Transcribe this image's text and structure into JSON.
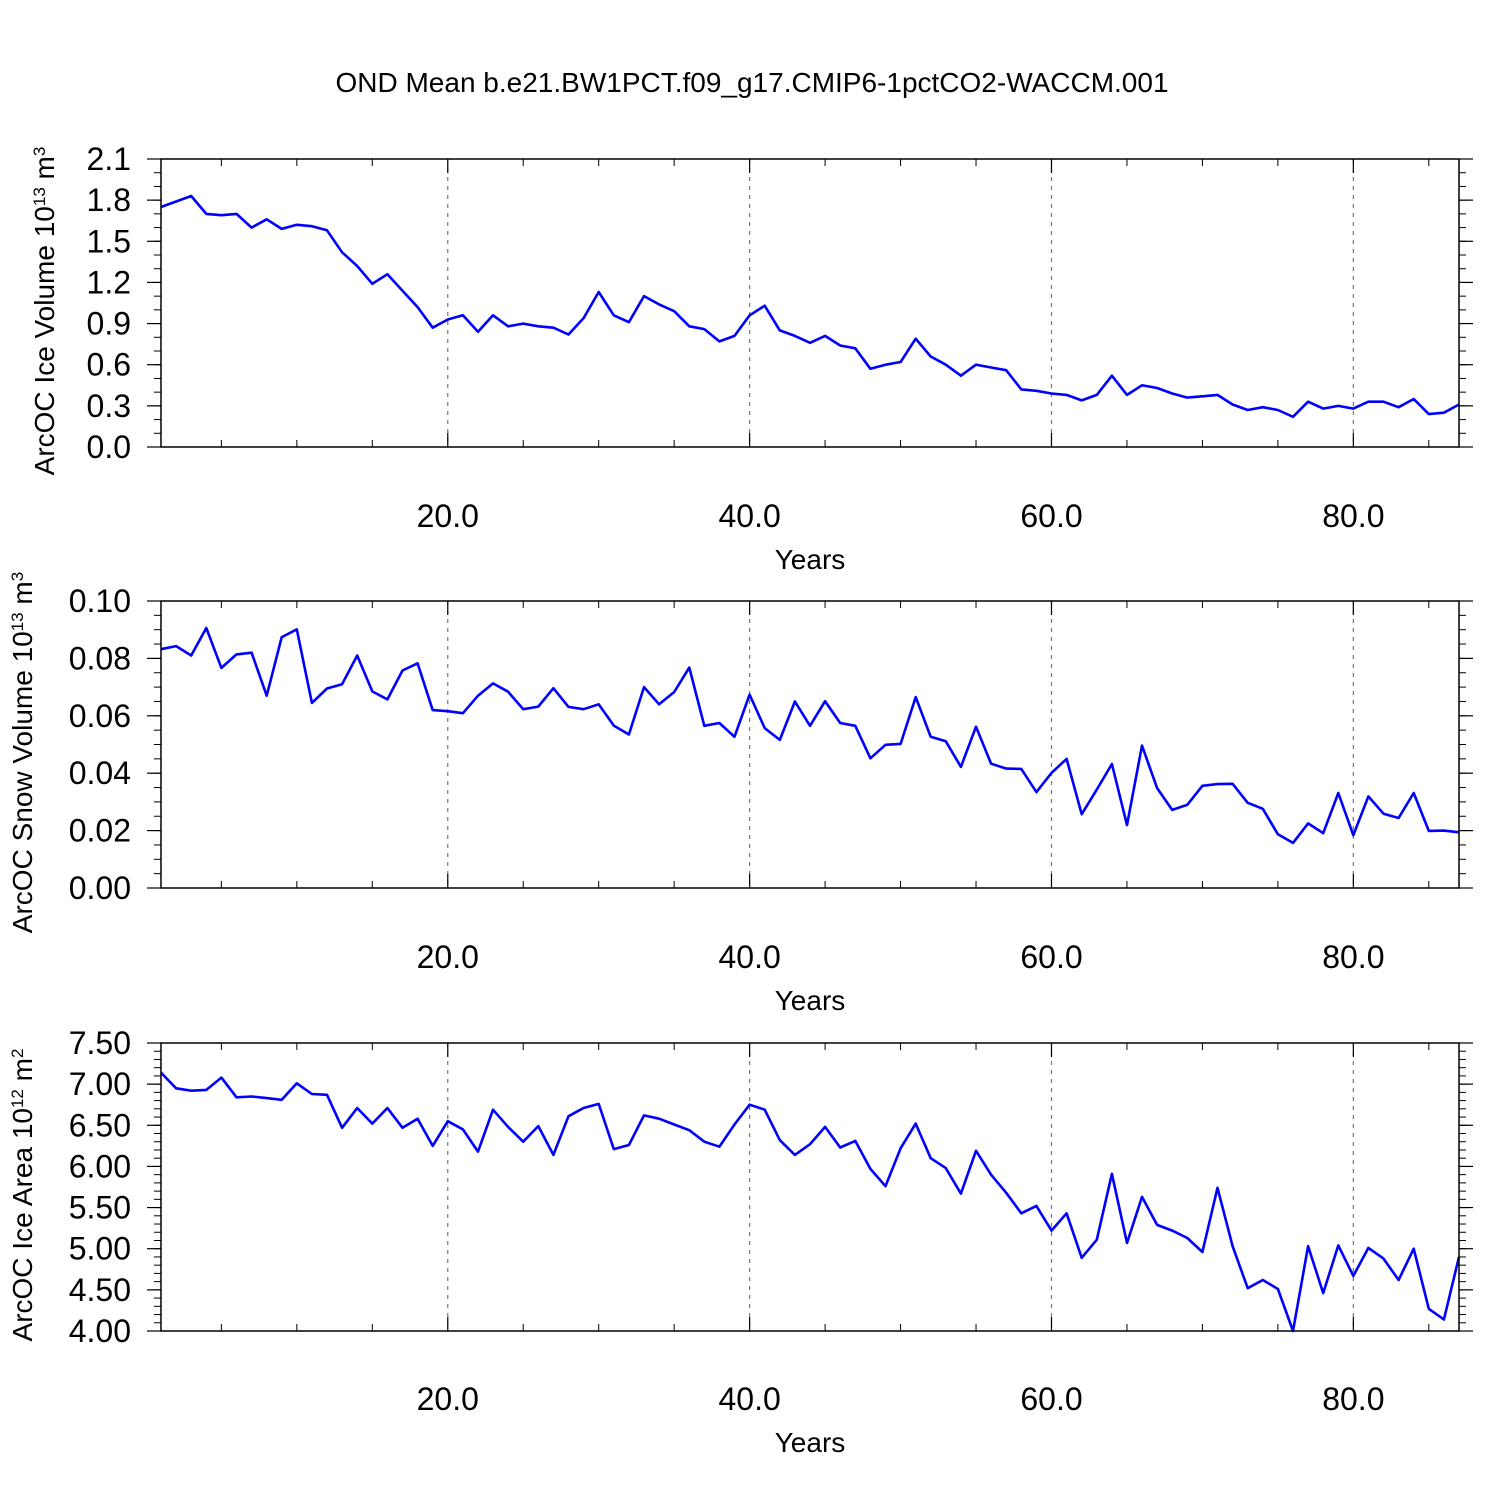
{
  "title": "OND Mean b.e21.BW1PCT.f09_g17.CMIP6-1pctCO2-WACCM.001",
  "line_color": "#0000ff",
  "chart_data": [
    {
      "type": "line",
      "ylabel_main": "ArcOC Ice Volume 10",
      "ylabel_exp": "13",
      "ylabel_unit": " m",
      "ylabel_unit_exp": "3",
      "xlabel": "Years",
      "xlim": [
        1,
        87
      ],
      "ylim": [
        0.0,
        2.1
      ],
      "xticks": [
        20,
        40,
        60,
        80
      ],
      "xtick_labels": [
        "20.0",
        "40.0",
        "60.0",
        "80.0"
      ],
      "yticks": [
        0.0,
        0.3,
        0.6,
        0.9,
        1.2,
        1.5,
        1.8,
        2.1
      ],
      "ytick_labels": [
        "0.0",
        "0.3",
        "0.6",
        "0.9",
        "1.2",
        "1.5",
        "1.8",
        "2.1"
      ],
      "y_minor_step": 0.1,
      "grid_x": "dashed",
      "series": [
        {
          "x_start": 1,
          "values": [
            1.75,
            1.79,
            1.83,
            1.7,
            1.69,
            1.7,
            1.6,
            1.66,
            1.59,
            1.62,
            1.61,
            1.58,
            1.42,
            1.32,
            1.19,
            1.26,
            1.14,
            1.02,
            0.87,
            0.93,
            0.96,
            0.84,
            0.96,
            0.88,
            0.9,
            0.88,
            0.87,
            0.82,
            0.94,
            1.13,
            0.96,
            0.91,
            1.1,
            1.04,
            0.99,
            0.88,
            0.86,
            0.77,
            0.81,
            0.96,
            1.03,
            0.85,
            0.81,
            0.76,
            0.81,
            0.74,
            0.72,
            0.57,
            0.6,
            0.62,
            0.79,
            0.66,
            0.6,
            0.52,
            0.6,
            0.58,
            0.56,
            0.42,
            0.41,
            0.39,
            0.38,
            0.34,
            0.38,
            0.52,
            0.38,
            0.45,
            0.43,
            0.39,
            0.36,
            0.37,
            0.38,
            0.31,
            0.27,
            0.29,
            0.27,
            0.22,
            0.33,
            0.28,
            0.3,
            0.28,
            0.33,
            0.33,
            0.29,
            0.35,
            0.24,
            0.25,
            0.31
          ]
        }
      ]
    },
    {
      "type": "line",
      "ylabel_main": "ArcOC Snow Volume 10",
      "ylabel_exp": "13",
      "ylabel_unit": " m",
      "ylabel_unit_exp": "3",
      "xlabel": "Years",
      "xlim": [
        1,
        87
      ],
      "ylim": [
        0.0,
        0.1
      ],
      "xticks": [
        20,
        40,
        60,
        80
      ],
      "xtick_labels": [
        "20.0",
        "40.0",
        "60.0",
        "80.0"
      ],
      "yticks": [
        0.0,
        0.02,
        0.04,
        0.06,
        0.08,
        0.1
      ],
      "ytick_labels": [
        "0.00",
        "0.02",
        "0.04",
        "0.06",
        "0.08",
        "0.10"
      ],
      "y_minor_step": 0.005,
      "grid_x": "dashed",
      "series": [
        {
          "x_start": 1,
          "values": [
            0.0832,
            0.0843,
            0.081,
            0.0906,
            0.0767,
            0.0814,
            0.082,
            0.067,
            0.0874,
            0.0901,
            0.0645,
            0.0695,
            0.071,
            0.081,
            0.0685,
            0.0657,
            0.0758,
            0.0783,
            0.062,
            0.0616,
            0.0609,
            0.067,
            0.0713,
            0.0684,
            0.0623,
            0.0632,
            0.0696,
            0.0631,
            0.0623,
            0.064,
            0.0566,
            0.0535,
            0.07,
            0.064,
            0.0683,
            0.0768,
            0.0565,
            0.0575,
            0.0527,
            0.0674,
            0.0557,
            0.0516,
            0.065,
            0.0565,
            0.0651,
            0.0575,
            0.0565,
            0.0452,
            0.0499,
            0.0502,
            0.0665,
            0.0527,
            0.0511,
            0.0422,
            0.0562,
            0.0433,
            0.0416,
            0.0415,
            0.0334,
            0.0401,
            0.045,
            0.0257,
            0.0343,
            0.0432,
            0.0219,
            0.0496,
            0.0348,
            0.0272,
            0.029,
            0.0356,
            0.0362,
            0.0363,
            0.0297,
            0.0276,
            0.0187,
            0.0157,
            0.0225,
            0.0191,
            0.0331,
            0.0184,
            0.0319,
            0.0259,
            0.0244,
            0.0331,
            0.0199,
            0.02,
            0.0194
          ]
        }
      ]
    },
    {
      "type": "line",
      "ylabel_main": "ArcOC Ice Area 10",
      "ylabel_exp": "12",
      "ylabel_unit": " m",
      "ylabel_unit_exp": "2",
      "xlabel": "Years",
      "xlim": [
        1,
        87
      ],
      "ylim": [
        4.0,
        7.5
      ],
      "xticks": [
        20,
        40,
        60,
        80
      ],
      "xtick_labels": [
        "20.0",
        "40.0",
        "60.0",
        "80.0"
      ],
      "yticks": [
        4.0,
        4.5,
        5.0,
        5.5,
        6.0,
        6.5,
        7.0,
        7.5
      ],
      "ytick_labels": [
        "4.00",
        "4.50",
        "5.00",
        "5.50",
        "6.00",
        "6.50",
        "7.00",
        "7.50"
      ],
      "y_minor_step": 0.1,
      "grid_x": "dashed",
      "series": [
        {
          "x_start": 1,
          "values": [
            7.14,
            6.95,
            6.92,
            6.93,
            7.08,
            6.84,
            6.85,
            6.83,
            6.81,
            7.01,
            6.88,
            6.87,
            6.47,
            6.71,
            6.52,
            6.71,
            6.47,
            6.58,
            6.25,
            6.55,
            6.45,
            6.18,
            6.69,
            6.48,
            6.3,
            6.49,
            6.14,
            6.61,
            6.71,
            6.76,
            6.21,
            6.26,
            6.62,
            6.58,
            6.51,
            6.44,
            6.3,
            6.24,
            6.51,
            6.75,
            6.69,
            6.32,
            6.14,
            6.27,
            6.48,
            6.23,
            6.31,
            5.97,
            5.76,
            6.22,
            6.52,
            6.1,
            5.98,
            5.67,
            6.19,
            5.9,
            5.68,
            5.43,
            5.52,
            5.22,
            5.43,
            4.89,
            5.11,
            5.91,
            5.07,
            5.63,
            5.29,
            5.22,
            5.13,
            4.96,
            5.74,
            5.03,
            4.52,
            4.62,
            4.51,
            4.0,
            5.03,
            4.46,
            5.04,
            4.67,
            5.01,
            4.88,
            4.62,
            5.0,
            4.27,
            4.14,
            4.9
          ]
        }
      ]
    }
  ]
}
